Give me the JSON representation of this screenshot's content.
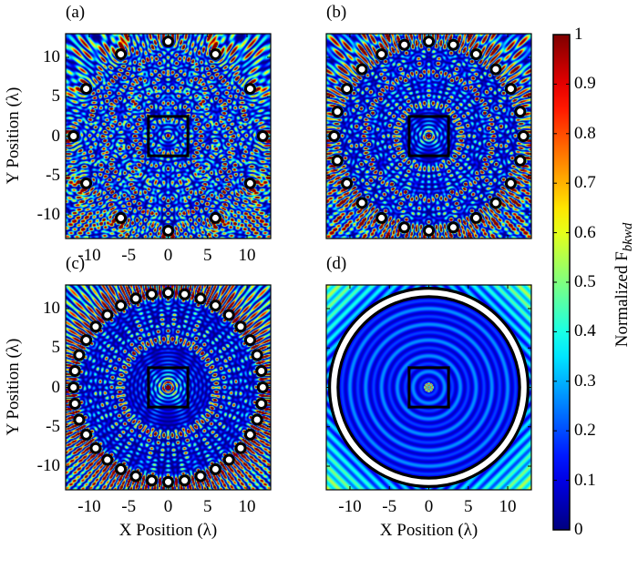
{
  "chart_data": [
    {
      "type": "heatmap",
      "panel_label": "(a)",
      "xlim": [
        -13,
        13
      ],
      "ylim": [
        -13,
        13
      ],
      "xticks": [
        "-10",
        "-5",
        "0",
        "5",
        "10"
      ],
      "yticks": [
        "10",
        "5",
        "0",
        "-5",
        "-10"
      ],
      "ylabel": "Y Position (λ)",
      "xlabel": "",
      "scatterers": {
        "count": 12,
        "ring_radius": 12,
        "continuous": false
      },
      "target_box": [
        -2.5,
        2.5
      ],
      "colormap": "jet"
    },
    {
      "type": "heatmap",
      "panel_label": "(b)",
      "xlim": [
        -13,
        13
      ],
      "ylim": [
        -13,
        13
      ],
      "xticks": [],
      "yticks": [],
      "ylabel": "",
      "xlabel": "",
      "scatterers": {
        "count": 24,
        "ring_radius": 12,
        "continuous": false
      },
      "target_box": [
        -2.5,
        2.5
      ],
      "colormap": "jet"
    },
    {
      "type": "heatmap",
      "panel_label": "(c)",
      "xlim": [
        -13,
        13
      ],
      "ylim": [
        -13,
        13
      ],
      "xticks": [
        "-10",
        "-5",
        "0",
        "5",
        "10"
      ],
      "yticks": [
        "10",
        "5",
        "0",
        "-5",
        "-10"
      ],
      "ylabel": "Y Position (λ)",
      "xlabel": "X Position (λ)",
      "scatterers": {
        "count": 36,
        "ring_radius": 12,
        "continuous": false
      },
      "target_box": [
        -2.5,
        2.5
      ],
      "colormap": "jet"
    },
    {
      "type": "heatmap",
      "panel_label": "(d)",
      "xlim": [
        -13,
        13
      ],
      "ylim": [
        -13,
        13
      ],
      "xticks": [
        "-10",
        "-5",
        "0",
        "5",
        "10"
      ],
      "yticks": [],
      "ylabel": "",
      "xlabel": "X Position (λ)",
      "scatterers": {
        "count": 0,
        "ring_radius": 12,
        "continuous": true
      },
      "target_box": [
        -2.5,
        2.5
      ],
      "colormap": "jet"
    }
  ],
  "colorbar": {
    "label_main": "Normalized F",
    "label_sub": "bkwd",
    "range": [
      0,
      1
    ],
    "ticks": [
      "0",
      "0.1",
      "0.2",
      "0.3",
      "0.4",
      "0.5",
      "0.6",
      "0.7",
      "0.8",
      "0.9",
      "1"
    ],
    "colormap": "jet"
  }
}
